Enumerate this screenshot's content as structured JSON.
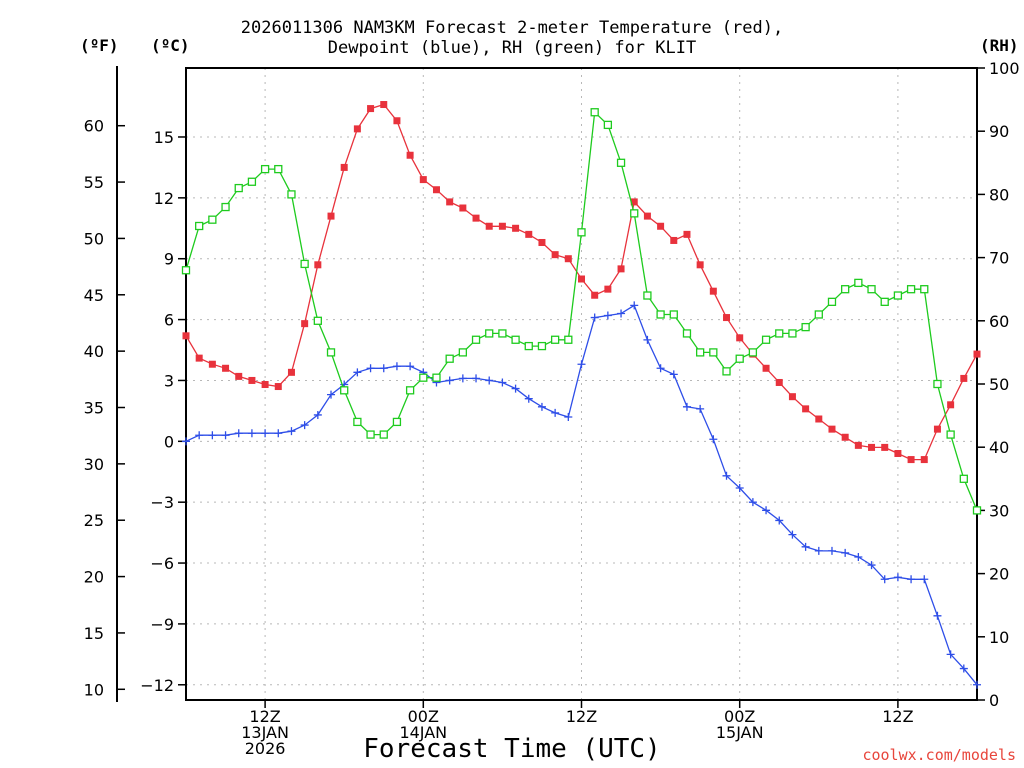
{
  "chart_data": {
    "type": "line",
    "title_line1": "2026011306 NAM3KM Forecast 2-meter Temperature (red),",
    "title_line2": "Dewpoint (blue), RH (green) for KLIT",
    "unit_f": "(ºF)",
    "unit_c": "(ºC)",
    "unit_rh": "(RH)",
    "xlabel": "Forecast Time (UTC)",
    "credit": "coolwx.com/models",
    "x_ticks": [
      {
        "hour": 6,
        "lines": [
          "12Z",
          "13JAN",
          "2026"
        ]
      },
      {
        "hour": 18,
        "lines": [
          "00Z",
          "14JAN"
        ]
      },
      {
        "hour": 30,
        "lines": [
          "12Z",
          ""
        ]
      },
      {
        "hour": 42,
        "lines": [
          "00Z",
          "15JAN"
        ]
      },
      {
        "hour": 54,
        "lines": [
          "12Z",
          ""
        ]
      }
    ],
    "x_range_hours": [
      0,
      60
    ],
    "xlim": [
      0,
      60
    ],
    "y_celsius": {
      "ylim": [
        -12.75,
        18.4
      ],
      "ticks": [
        "15",
        "12",
        "9",
        "6",
        "3",
        "0",
        "−3",
        "−6",
        "−9",
        "−12"
      ]
    },
    "y_fahrenheit": {
      "ticks": [
        "60",
        "55",
        "50",
        "45",
        "40",
        "35",
        "30",
        "25",
        "20",
        "15",
        "10"
      ]
    },
    "y_rh": {
      "ylim": [
        0,
        100
      ],
      "ticks": [
        "100",
        "90",
        "80",
        "70",
        "60",
        "50",
        "40",
        "30",
        "20",
        "10",
        "0"
      ]
    },
    "grid": true,
    "series": [
      {
        "name": "2-meter Temperature",
        "color": "#e8323c",
        "marker": "filled-square",
        "axis": "celsius",
        "x": [
          0,
          1,
          2,
          3,
          4,
          5,
          6,
          7,
          8,
          9,
          10,
          11,
          12,
          13,
          14,
          15,
          16,
          17,
          18,
          19,
          20,
          21,
          22,
          23,
          24,
          25,
          26,
          27,
          28,
          29,
          30,
          31,
          32,
          33,
          34,
          35,
          36,
          37,
          38,
          39,
          40,
          41,
          42,
          43,
          44,
          45,
          46,
          47,
          48,
          49,
          50,
          51,
          52,
          53,
          54,
          55,
          56,
          57,
          58,
          59,
          60
        ],
        "values": [
          5.2,
          4.1,
          3.8,
          3.6,
          3.2,
          3.0,
          2.8,
          2.7,
          3.4,
          5.8,
          8.7,
          11.1,
          13.5,
          15.4,
          16.4,
          16.6,
          15.8,
          14.1,
          12.9,
          12.4,
          11.8,
          11.5,
          11.0,
          10.6,
          10.6,
          10.5,
          10.2,
          9.8,
          9.2,
          9.0,
          8.0,
          7.2,
          7.5,
          8.5,
          11.8,
          11.1,
          10.6,
          9.9,
          10.2,
          8.7,
          7.4,
          6.1,
          5.1,
          4.3,
          3.6,
          2.9,
          2.2,
          1.6,
          1.1,
          0.6,
          0.2,
          -0.2,
          -0.3,
          -0.3,
          -0.6,
          -0.9,
          -0.9,
          0.6,
          1.8,
          3.1,
          4.3
        ]
      },
      {
        "name": "Dewpoint",
        "color": "#2e4ee8",
        "marker": "plus",
        "axis": "celsius",
        "x": [
          0,
          1,
          2,
          3,
          4,
          5,
          6,
          7,
          8,
          9,
          10,
          11,
          12,
          13,
          14,
          15,
          16,
          17,
          18,
          19,
          20,
          21,
          22,
          23,
          24,
          25,
          26,
          27,
          28,
          29,
          30,
          31,
          32,
          33,
          34,
          35,
          36,
          37,
          38,
          39,
          40,
          41,
          42,
          43,
          44,
          45,
          46,
          47,
          48,
          49,
          50,
          51,
          52,
          53,
          54,
          55,
          56,
          57,
          58,
          59,
          60
        ],
        "values": [
          0.0,
          0.3,
          0.3,
          0.3,
          0.4,
          0.4,
          0.4,
          0.4,
          0.5,
          0.8,
          1.3,
          2.3,
          2.8,
          3.4,
          3.6,
          3.6,
          3.7,
          3.7,
          3.4,
          2.9,
          3.0,
          3.1,
          3.1,
          3.0,
          2.9,
          2.6,
          2.1,
          1.7,
          1.4,
          1.2,
          3.8,
          6.1,
          6.2,
          6.3,
          6.7,
          5.0,
          3.6,
          3.3,
          1.7,
          1.6,
          0.1,
          -1.7,
          -2.3,
          -3.0,
          -3.4,
          -3.9,
          -4.6,
          -5.2,
          -5.4,
          -5.4,
          -5.5,
          -5.7,
          -6.1,
          -6.8,
          -6.7,
          -6.8,
          -6.8,
          -8.6,
          -10.5,
          -11.2,
          -12.0
        ]
      },
      {
        "name": "RH",
        "color": "#1ecb1e",
        "marker": "open-square",
        "axis": "rh",
        "x": [
          0,
          1,
          2,
          3,
          4,
          5,
          6,
          7,
          8,
          9,
          10,
          11,
          12,
          13,
          14,
          15,
          16,
          17,
          18,
          19,
          20,
          21,
          22,
          23,
          24,
          25,
          26,
          27,
          28,
          29,
          30,
          31,
          32,
          33,
          34,
          35,
          36,
          37,
          38,
          39,
          40,
          41,
          42,
          43,
          44,
          45,
          46,
          47,
          48,
          49,
          50,
          51,
          52,
          53,
          54,
          55,
          56,
          57,
          58,
          59,
          60
        ],
        "values": [
          68,
          75,
          76,
          78,
          81,
          82,
          84,
          84,
          80,
          69,
          60,
          55,
          49,
          44,
          42,
          42,
          44,
          49,
          51,
          51,
          54,
          55,
          57,
          58,
          58,
          57,
          56,
          56,
          57,
          57,
          74,
          93,
          91,
          85,
          77,
          64,
          61,
          61,
          58,
          55,
          55,
          52,
          54,
          55,
          57,
          58,
          58,
          59,
          61,
          63,
          65,
          66,
          65,
          63,
          64,
          65,
          65,
          50,
          42,
          35,
          30
        ]
      }
    ]
  }
}
